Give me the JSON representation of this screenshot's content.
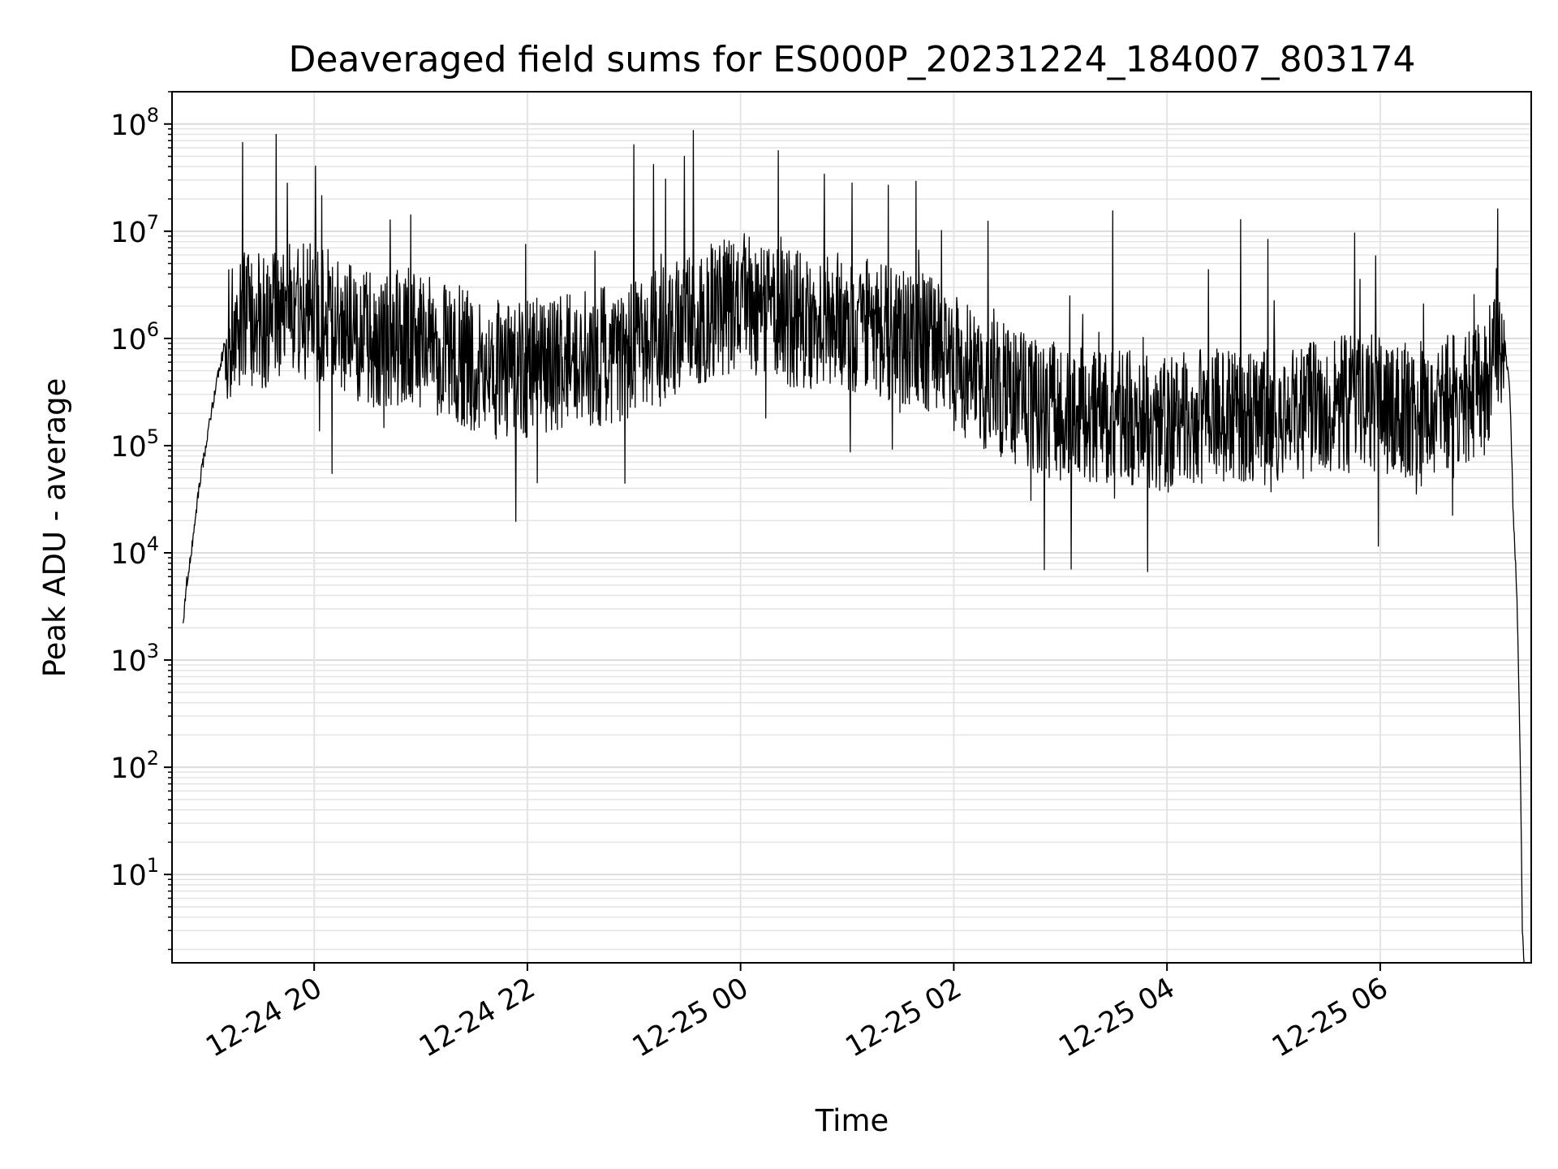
{
  "chart_data": {
    "type": "line",
    "title": "Deaveraged field sums for ES000P_20231224_184007_803174",
    "xlabel": "Time",
    "ylabel": "Peak ADU - average",
    "yscale": "log",
    "ylim": [
      1.5,
      200000000.0
    ],
    "xlim": [
      "2023-12-24 18:40",
      "2023-12-25 07:25"
    ],
    "grid": true,
    "x_ticks": [
      {
        "value": "2023-12-24 20:00",
        "label": "12-24 20"
      },
      {
        "value": "2023-12-24 22:00",
        "label": "12-24 22"
      },
      {
        "value": "2023-12-25 00:00",
        "label": "12-25 00"
      },
      {
        "value": "2023-12-25 02:00",
        "label": "12-25 02"
      },
      {
        "value": "2023-12-25 04:00",
        "label": "12-25 04"
      },
      {
        "value": "2023-12-25 06:00",
        "label": "12-25 06"
      }
    ],
    "y_ticks": [
      {
        "value": 10,
        "base": "10",
        "exp": "1"
      },
      {
        "value": 100,
        "base": "10",
        "exp": "2"
      },
      {
        "value": 1000,
        "base": "10",
        "exp": "3"
      },
      {
        "value": 10000,
        "base": "10",
        "exp": "4"
      },
      {
        "value": 100000,
        "base": "10",
        "exp": "5"
      },
      {
        "value": 1000000,
        "base": "10",
        "exp": "6"
      },
      {
        "value": 10000000,
        "base": "10",
        "exp": "7"
      },
      {
        "value": 100000000,
        "base": "10",
        "exp": "8"
      }
    ],
    "series": [
      {
        "color": "#000000",
        "x": [
          "2023-12-24 18:46",
          "2023-12-24 18:48",
          "2023-12-24 18:50",
          "2023-12-24 18:53",
          "2023-12-24 18:56",
          "2023-12-24 19:00",
          "2023-12-24 19:05",
          "2023-12-24 19:10",
          "2023-12-24 19:15",
          "2023-12-24 19:20",
          "2023-12-24 19:30",
          "2023-12-24 19:40",
          "2023-12-24 19:50",
          "2023-12-24 20:00",
          "2023-12-24 20:10",
          "2023-12-24 20:20",
          "2023-12-24 20:30",
          "2023-12-24 20:40",
          "2023-12-24 20:50",
          "2023-12-24 21:00",
          "2023-12-24 21:15",
          "2023-12-24 21:30",
          "2023-12-24 21:45",
          "2023-12-24 22:00",
          "2023-12-24 22:15",
          "2023-12-24 22:30",
          "2023-12-24 22:45",
          "2023-12-24 23:00",
          "2023-12-24 23:15",
          "2023-12-24 23:30",
          "2023-12-24 23:45",
          "2023-12-25 00:00",
          "2023-12-25 00:15",
          "2023-12-25 00:30",
          "2023-12-25 00:45",
          "2023-12-25 01:00",
          "2023-12-25 01:15",
          "2023-12-25 01:30",
          "2023-12-25 01:45",
          "2023-12-25 02:00",
          "2023-12-25 02:15",
          "2023-12-25 02:30",
          "2023-12-25 02:45",
          "2023-12-25 03:00",
          "2023-12-25 03:15",
          "2023-12-25 03:30",
          "2023-12-25 03:45",
          "2023-12-25 04:00",
          "2023-12-25 04:15",
          "2023-12-25 04:30",
          "2023-12-25 04:45",
          "2023-12-25 05:00",
          "2023-12-25 05:15",
          "2023-12-25 05:30",
          "2023-12-25 05:45",
          "2023-12-25 06:00",
          "2023-12-25 06:15",
          "2023-12-25 06:30",
          "2023-12-25 06:45",
          "2023-12-25 07:00",
          "2023-12-25 07:05",
          "2023-12-25 07:10",
          "2023-12-25 07:13",
          "2023-12-25 07:15",
          "2023-12-25 07:17",
          "2023-12-25 07:19",
          "2023-12-25 07:20",
          "2023-12-25 07:21"
        ],
        "y": [
          2000,
          5000,
          8000,
          20000,
          50000,
          120000,
          400000,
          900000,
          1500000,
          1600000,
          1500000,
          1600000,
          1800000,
          1700000,
          1500000,
          1300000,
          1000000,
          900000,
          1100000,
          900000,
          800000,
          600000,
          500000,
          500000,
          600000,
          600000,
          700000,
          800000,
          1000000,
          1300000,
          1800000,
          2200000,
          1800000,
          1500000,
          1300000,
          1500000,
          1200000,
          1100000,
          900000,
          600000,
          400000,
          300000,
          250000,
          200000,
          200000,
          180000,
          170000,
          160000,
          170000,
          200000,
          200000,
          180000,
          200000,
          220000,
          250000,
          250000,
          230000,
          250000,
          280000,
          350000,
          1100000,
          1000000,
          300000,
          20000,
          4000,
          80,
          3,
          1.5
        ]
      }
    ]
  }
}
